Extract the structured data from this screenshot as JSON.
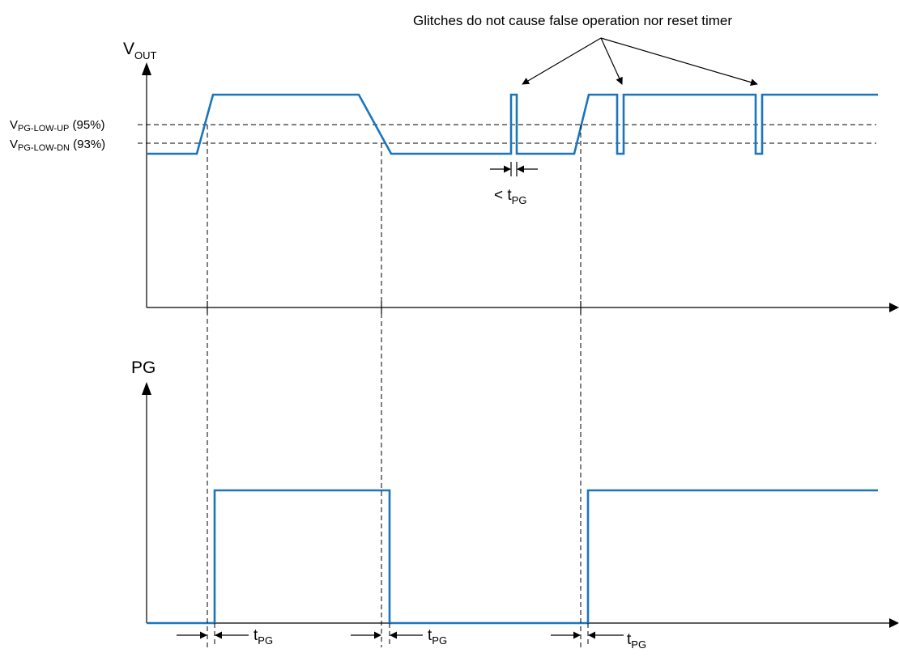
{
  "annotation": "Glitches do not cause false operation nor reset timer",
  "axes": {
    "vout": {
      "base": "V",
      "sub": "OUT"
    },
    "pg": {
      "label": "PG"
    }
  },
  "thresholds": {
    "upper": {
      "base": "V",
      "sub": "PG-LOW-UP",
      "suffix": " (95%)"
    },
    "lower": {
      "base": "V",
      "sub": "PG-LOW-DN",
      "suffix": " (93%)"
    }
  },
  "timing": {
    "glitch_label": {
      "prefix": "< t",
      "sub": "PG"
    },
    "delay_label": {
      "base": "t",
      "sub": "PG"
    }
  },
  "colors": {
    "signal": "#1a75bc",
    "line": "#000000"
  },
  "icons": {
    "arrowhead": "arrowhead-icon"
  }
}
